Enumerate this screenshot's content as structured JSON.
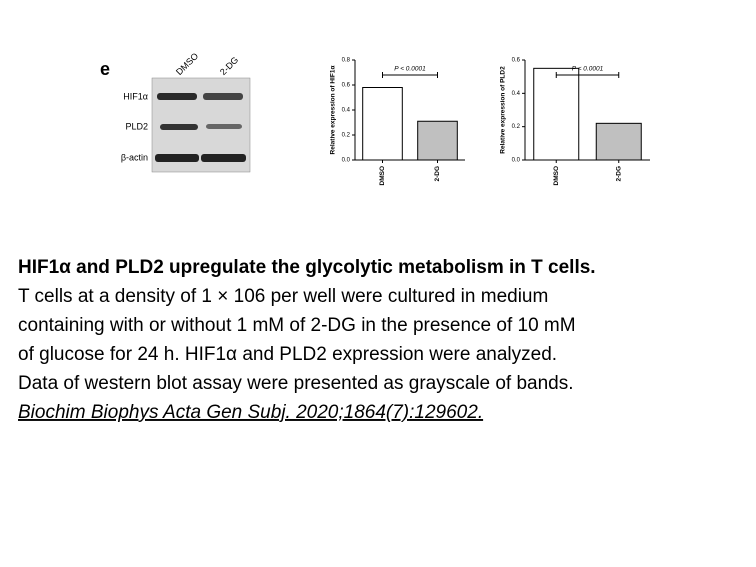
{
  "blot": {
    "panel_label": "e",
    "lanes": [
      "DMSO",
      "2-DG"
    ],
    "rows": [
      "HIF1α",
      "PLD2",
      "β-actin"
    ]
  },
  "chart_data": [
    {
      "type": "bar",
      "ylabel": "Relative expression of HIF1α",
      "annotation": "P < 0.0001",
      "categories": [
        "DMSO",
        "2-DG"
      ],
      "values": [
        0.58,
        0.31
      ],
      "colors": [
        "#ffffff",
        "#c0c0c0"
      ],
      "ylim": [
        0,
        0.8
      ],
      "yticks": [
        {
          "value": 0,
          "label": "0.0"
        },
        0.2,
        0.4,
        0.6,
        0.8
      ]
    },
    {
      "type": "bar",
      "ylabel": "Relative expression of PLD2",
      "annotation": "P < 0.0001",
      "categories": [
        "DMSO",
        "2-DG"
      ],
      "values": [
        0.55,
        0.22
      ],
      "colors": [
        "#ffffff",
        "#c0c0c0"
      ],
      "ylim": [
        0,
        0.6
      ],
      "yticks": [
        {
          "value": 0,
          "label": "0.0"
        },
        0.2,
        0.4,
        0.6
      ]
    }
  ],
  "caption": {
    "title": "HIF1α and PLD2 upregulate the glycolytic metabolism in T cells.",
    "body": [
      "T cells at a density of 1 × 106 per well were cultured in medium",
      "containing with or without 1 mM of 2-DG in the presence of 10 mM",
      "of glucose for 24 h. HIF1α and PLD2 expression were analyzed.",
      "Data of western blot assay were presented as grayscale of bands."
    ],
    "citation": "Biochim Biophys Acta Gen Subj. 2020;1864(7):129602."
  }
}
